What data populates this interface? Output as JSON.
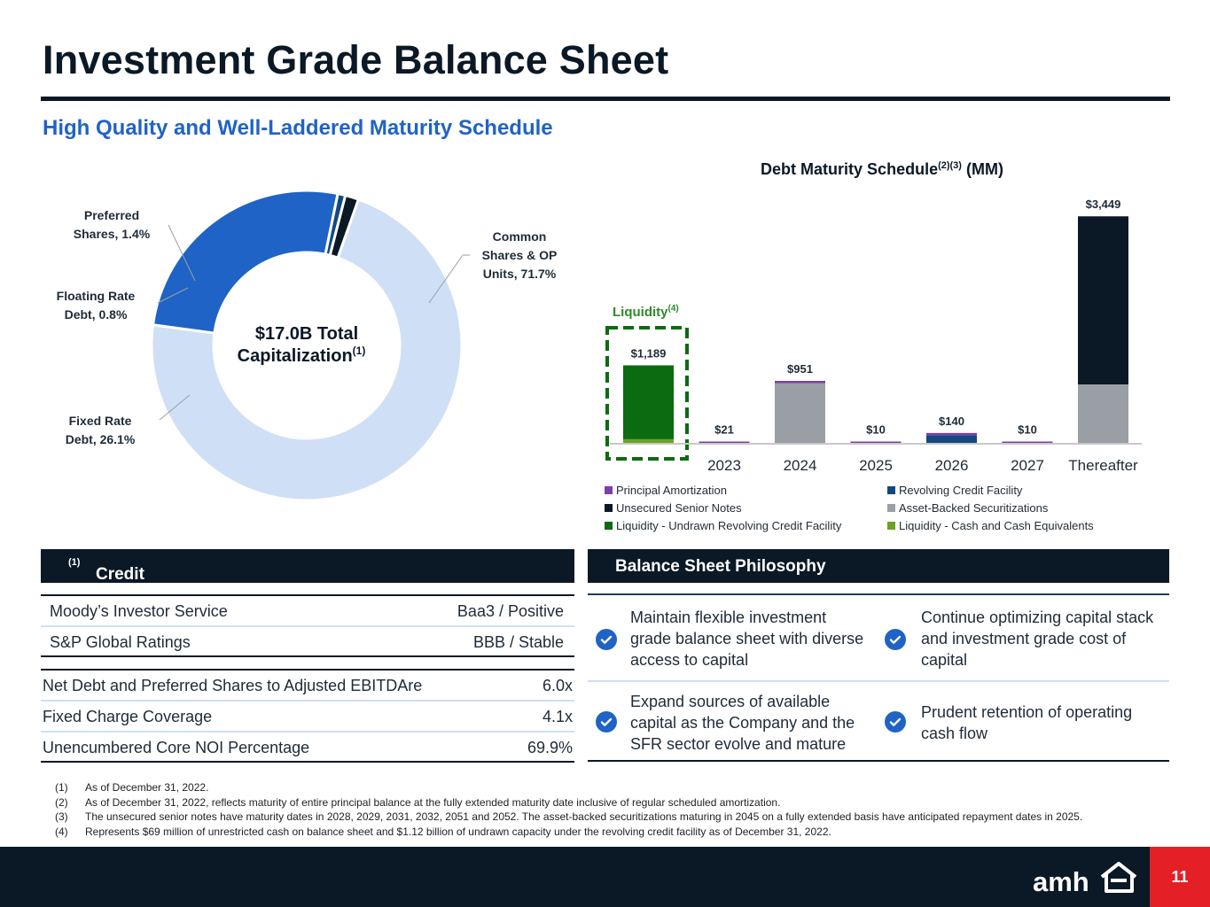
{
  "title": "Investment Grade Balance Sheet",
  "subtitle": "High Quality and Well-Laddered Maturity Schedule",
  "chart_data": [
    {
      "type": "pie",
      "variant": "donut",
      "center_label": "$17.0B Total",
      "center_label_2": "Capitalization",
      "center_label_sup": "(1)",
      "slices": [
        {
          "label_line1": "Common",
          "label_line2": "Shares & OP",
          "label_line3": "Units, 71.7%",
          "name": "Common Shares & OP Units",
          "value": 71.7,
          "color": "#cfdff6"
        },
        {
          "label_line1": "Fixed Rate",
          "label_line2": "Debt, 26.1%",
          "name": "Fixed Rate Debt",
          "value": 26.1,
          "color": "#1f63c6"
        },
        {
          "label_line1": "Floating Rate",
          "label_line2": "Debt, 0.8%",
          "name": "Floating Rate Debt",
          "value": 0.8,
          "color": "#14487f"
        },
        {
          "label_line1": "Preferred",
          "label_line2": "Shares, 1.4%",
          "name": "Preferred Shares",
          "value": 1.4,
          "color": "#0b1826"
        }
      ]
    },
    {
      "type": "bar",
      "stacked": true,
      "title": "Debt Maturity Schedule",
      "title_sup": "(2)(3)",
      "title_suffix": " (MM)",
      "liquidity_label": "Liquidity",
      "liquidity_sup": "(4)",
      "categories": [
        "",
        "2023",
        "2024",
        "2025",
        "2026",
        "2027",
        "Thereafter"
      ],
      "totals": [
        "$1,189",
        "$21",
        "$951",
        "$10",
        "$140",
        "$10",
        "$3,449"
      ],
      "ylim": [
        0,
        3600
      ],
      "series": [
        {
          "name": "Liquidity - Cash and Cash Equivalents",
          "color": "#6aa326",
          "values": [
            69,
            0,
            0,
            0,
            0,
            0,
            0
          ]
        },
        {
          "name": "Liquidity - Undrawn Revolving Credit Facility",
          "color": "#0b6b10",
          "values": [
            1120,
            0,
            0,
            0,
            0,
            0,
            0
          ]
        },
        {
          "name": "Asset-Backed Securitizations",
          "color": "#9a9ea5",
          "values": [
            0,
            0,
            920,
            0,
            0,
            0,
            900
          ]
        },
        {
          "name": "Revolving Credit Facility",
          "color": "#14487f",
          "values": [
            0,
            0,
            0,
            0,
            130,
            0,
            0
          ]
        },
        {
          "name": "Unsecured Senior Notes",
          "color": "#0b1826",
          "values": [
            0,
            0,
            0,
            0,
            0,
            0,
            2549
          ]
        },
        {
          "name": "Principal Amortization",
          "color": "#7b3fa6",
          "values": [
            0,
            21,
            31,
            10,
            10,
            10,
            0
          ]
        }
      ],
      "legend": [
        {
          "name": "Principal Amortization",
          "color": "#7b3fa6"
        },
        {
          "name": "Revolving Credit Facility",
          "color": "#14487f"
        },
        {
          "name": "Unsecured Senior Notes",
          "color": "#0b1826"
        },
        {
          "name": "Asset-Backed Securitizations",
          "color": "#9a9ea5"
        },
        {
          "name": "Liquidity - Undrawn Revolving Credit Facility",
          "color": "#0b6b10"
        },
        {
          "name": "Liquidity - Cash and Cash Equivalents",
          "color": "#6aa326"
        }
      ]
    }
  ],
  "credit": {
    "header": "Credit Ratings and Metrics",
    "header_sup": "(1)",
    "ratings": [
      {
        "label": "Moody’s Investor Service",
        "value": "Baa3 / Positive"
      },
      {
        "label": "S&P Global Ratings",
        "value": "BBB / Stable"
      }
    ],
    "metrics": [
      {
        "label": "Net Debt and Preferred Shares to Adjusted EBITDAre",
        "value": "6.0x"
      },
      {
        "label": "Fixed Charge Coverage",
        "value": "4.1x"
      },
      {
        "label": "Unencumbered Core NOI Percentage",
        "value": "69.9%"
      }
    ]
  },
  "philosophy": {
    "header": "Balance Sheet Philosophy",
    "items": [
      {
        "l1": "Maintain flexible investment",
        "l2": "grade balance sheet with diverse",
        "l3": "access to capital"
      },
      {
        "l1": "Continue optimizing capital stack",
        "l2": "and investment grade cost of",
        "l3": "capital"
      },
      {
        "l1": "Expand sources of available",
        "l2": "capital as the Company and the",
        "l3": "SFR sector evolve and mature"
      },
      {
        "l1": "Prudent retention of operating",
        "l2": "cash flow",
        "l3": ""
      }
    ]
  },
  "footnotes": [
    {
      "n": "(1)",
      "t": "As of December 31, 2022."
    },
    {
      "n": "(2)",
      "t": "As of December 31, 2022, reflects maturity of entire principal balance at the fully extended maturity date inclusive of regular scheduled amortization."
    },
    {
      "n": "(3)",
      "t": "The unsecured senior notes have maturity dates in 2028, 2029, 2031, 2032, 2051 and 2052. The asset-backed securitizations maturing in 2045 on a fully extended basis have anticipated repayment dates in 2025."
    },
    {
      "n": "(4)",
      "t": "Represents $69 million of unrestricted cash on balance sheet and $1.12 billion of undrawn capacity under the revolving credit facility as of December 31, 2022."
    }
  ],
  "logo_text": "amh",
  "page_number": "11"
}
